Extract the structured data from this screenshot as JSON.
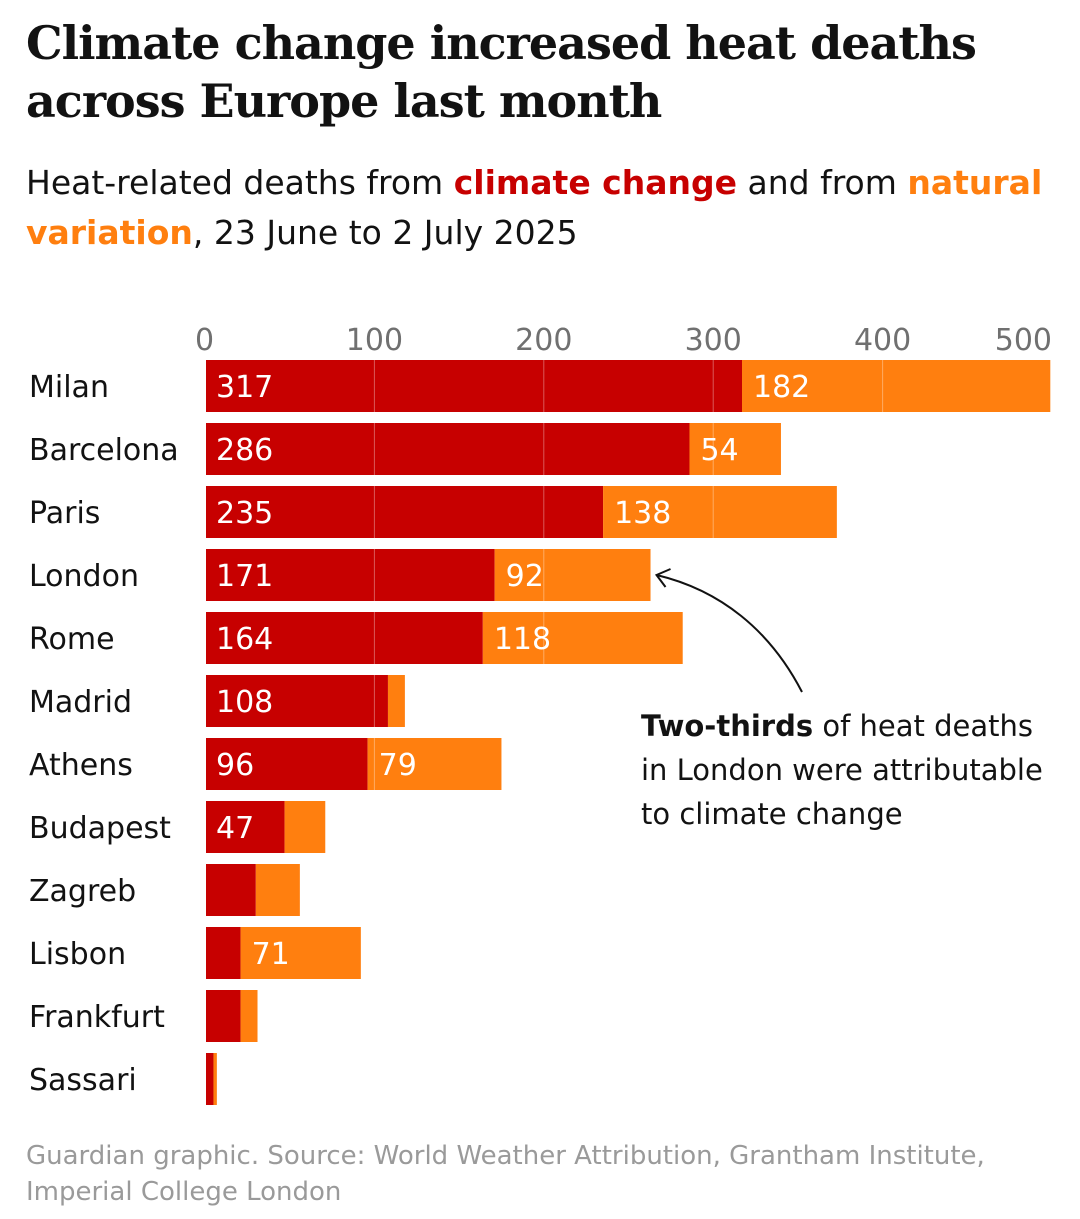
{
  "title": "Climate change increased heat deaths across Europe last month",
  "subtitle": {
    "part1": "Heat-related deaths from ",
    "climate": "climate change",
    "part2": " and from ",
    "natural": "natural variation",
    "part3": ", 23 June to 2 July 2025"
  },
  "annotation": {
    "bold": "Two-thirds",
    "rest": " of heat deaths in London were attributable to climate change"
  },
  "source": "Guardian graphic. Source: World Weather Attribution, Grantham Institute,  Imperial College London",
  "colors": {
    "climate_change": "#c70000",
    "natural_variation": "#ff7f0f",
    "text": "#121212",
    "source": "#9a9a9a"
  },
  "chart_data": {
    "type": "bar",
    "orientation": "horizontal",
    "stacked": true,
    "categories": [
      "Milan",
      "Barcelona",
      "Paris",
      "London",
      "Rome",
      "Madrid",
      "Athens",
      "Budapest",
      "Zagreb",
      "Lisbon",
      "Frankfurt",
      "Sassari"
    ],
    "series": [
      {
        "name": "climate change",
        "color": "#c70000",
        "values": [
          317,
          286,
          235,
          171,
          164,
          108,
          96,
          47,
          30,
          21,
          21,
          5
        ],
        "labels": [
          "317",
          "286",
          "235",
          "171",
          "164",
          "108",
          "96",
          "47",
          "",
          "",
          "",
          ""
        ]
      },
      {
        "name": "natural variation",
        "color": "#ff7f0f",
        "values": [
          182,
          54,
          138,
          92,
          118,
          10,
          79,
          24,
          26,
          71,
          10,
          2
        ],
        "labels": [
          "182",
          "54",
          "138",
          "92",
          "118",
          "",
          "79",
          "",
          "",
          "71",
          "",
          ""
        ]
      }
    ],
    "xlim": [
      0,
      500
    ],
    "xticks": [
      "0",
      "100",
      "200",
      "300",
      "400",
      "500"
    ],
    "xtick_values": [
      0,
      100,
      200,
      300,
      400,
      500
    ],
    "grid": true,
    "legend": "none (colours keyed in subtitle)"
  }
}
